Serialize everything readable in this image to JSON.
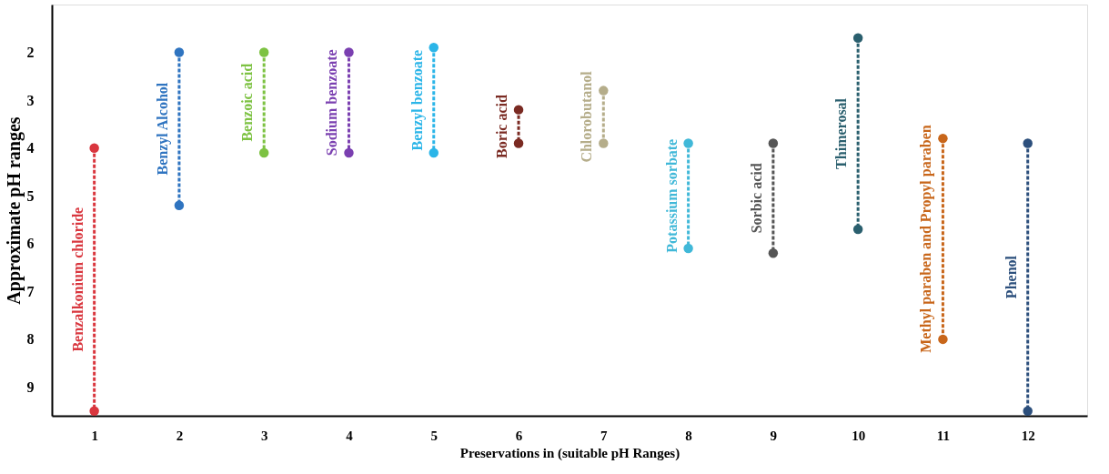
{
  "chart_data": {
    "type": "line",
    "xlabel": "Preservations in (suitable pH Ranges)",
    "ylabel": "Approximate pH ranges",
    "xlim": [
      0.5,
      12.7
    ],
    "xticks": [
      1,
      2,
      3,
      4,
      5,
      6,
      7,
      8,
      9,
      10,
      11,
      12
    ],
    "ylim": [
      9.6,
      1.0
    ],
    "yticks": [
      2,
      3,
      4,
      5,
      6,
      7,
      8,
      9
    ],
    "marker": "circle",
    "line_style": "dashed",
    "grid": false,
    "legend": false,
    "series": [
      {
        "name": "Benzalkonium chloride",
        "color": "#d9363e",
        "x": [
          1,
          1
        ],
        "values": [
          4.0,
          9.5
        ]
      },
      {
        "name": "Benzyl Alcohol",
        "color": "#2f74c0",
        "x": [
          2,
          2
        ],
        "values": [
          2.0,
          5.2
        ]
      },
      {
        "name": "Benzoic acid",
        "color": "#7dc242",
        "x": [
          3,
          3
        ],
        "values": [
          2.0,
          4.1
        ]
      },
      {
        "name": "Sodium benzoate",
        "color": "#7a3fb0",
        "x": [
          4,
          4
        ],
        "values": [
          2.0,
          4.1
        ]
      },
      {
        "name": "Benzyl benzoate",
        "color": "#2bb5e8",
        "x": [
          5,
          5
        ],
        "values": [
          1.9,
          4.1
        ]
      },
      {
        "name": "Boric acid",
        "color": "#7a2a22",
        "x": [
          6,
          6
        ],
        "values": [
          3.2,
          3.9
        ]
      },
      {
        "name": "Chlorobutanol",
        "color": "#b5ad8a",
        "x": [
          7,
          7
        ],
        "values": [
          2.8,
          3.9
        ]
      },
      {
        "name": "Potassium sorbate",
        "color": "#40b8d8",
        "x": [
          8,
          8
        ],
        "values": [
          3.9,
          6.1
        ]
      },
      {
        "name": "Sorbic acid",
        "color": "#555555",
        "x": [
          9,
          9
        ],
        "values": [
          3.9,
          6.2
        ]
      },
      {
        "name": "Thimerosal",
        "color": "#2a5f6e",
        "x": [
          10,
          10
        ],
        "values": [
          1.7,
          5.7
        ]
      },
      {
        "name": "Methyl paraben and Propyl paraben",
        "color": "#c8661a",
        "x": [
          11,
          11
        ],
        "values": [
          3.8,
          8.0
        ]
      },
      {
        "name": "Phenol",
        "color": "#2c4f7c",
        "x": [
          12,
          12
        ],
        "values": [
          3.9,
          9.5
        ]
      }
    ]
  }
}
